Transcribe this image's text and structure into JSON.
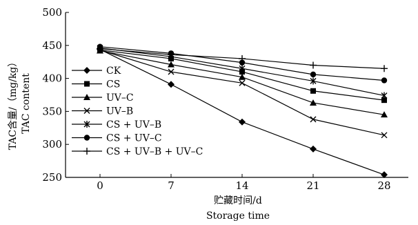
{
  "chart_data": {
    "type": "line",
    "x": [
      0,
      7,
      14,
      21,
      28
    ],
    "xlabel_zh": "贮藏时间/d",
    "xlabel_en": "Storage time",
    "ylabel_zh": "TAC含量/（mg/kg）",
    "ylabel_en": "TAC content",
    "ylim": [
      250,
      500
    ],
    "yticks": [
      250,
      300,
      350,
      400,
      450,
      500
    ],
    "legend_position": "left",
    "series": [
      {
        "name": "CK",
        "marker": "diamond",
        "values": [
          444,
          391,
          334,
          293,
          254
        ]
      },
      {
        "name": "CS",
        "marker": "square",
        "values": [
          443,
          430,
          410,
          381,
          367
        ]
      },
      {
        "name": "UV–C",
        "marker": "triangle",
        "values": [
          442,
          421,
          402,
          363,
          345
        ]
      },
      {
        "name": "UV–B",
        "marker": "x",
        "values": [
          443,
          410,
          393,
          338,
          314
        ]
      },
      {
        "name": "CS + UV–B",
        "marker": "asterisk",
        "values": [
          446,
          433,
          415,
          396,
          374
        ]
      },
      {
        "name": "CS + UV–C",
        "marker": "circle",
        "values": [
          448,
          438,
          424,
          406,
          397
        ]
      },
      {
        "name": "CS + UV–B + UV–C",
        "marker": "plus",
        "values": [
          445,
          436,
          430,
          420,
          415
        ]
      }
    ]
  }
}
